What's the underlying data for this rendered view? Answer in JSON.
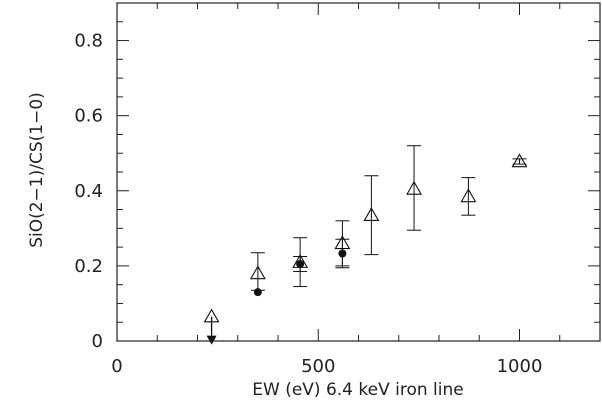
{
  "chart_data": {
    "type": "scatter",
    "title": "",
    "xlabel": "EW (eV) 6.4 keV iron line",
    "ylabel": "SiO(2−1)/CS(1−0)",
    "xlim": [
      0,
      1200
    ],
    "ylim": [
      0,
      0.9
    ],
    "grid": false,
    "legend": "none",
    "x_ticks_labeled": [
      0,
      500,
      1000
    ],
    "x_tick_labels": [
      "0",
      "500",
      "1000"
    ],
    "y_ticks_labeled": [
      0,
      0.2,
      0.4,
      0.6,
      0.8
    ],
    "y_tick_labels": [
      "0",
      "0.2",
      "0.4",
      "0.6",
      "0.8"
    ],
    "series": [
      {
        "marker": "open-triangle",
        "points": [
          {
            "x": 235,
            "y": 0.065,
            "upper_limit": true
          },
          {
            "x": 350,
            "y": 0.18,
            "err_lo": 0.045,
            "err_hi": 0.055
          },
          {
            "x": 455,
            "y": 0.21,
            "err_lo": 0.065,
            "err_hi": 0.065
          },
          {
            "x": 560,
            "y": 0.26,
            "err_lo": 0.06,
            "err_hi": 0.06
          },
          {
            "x": 632,
            "y": 0.335,
            "err_lo": 0.105,
            "err_hi": 0.105
          },
          {
            "x": 738,
            "y": 0.405,
            "err_lo": 0.11,
            "err_hi": 0.115
          },
          {
            "x": 873,
            "y": 0.385,
            "err_lo": 0.05,
            "err_hi": 0.05
          },
          {
            "x": 1000,
            "y": 0.478,
            "err_lo": 0.007,
            "err_hi": 0.007
          }
        ]
      },
      {
        "marker": "filled-circle",
        "points": [
          {
            "x": 350,
            "y": 0.13
          },
          {
            "x": 455,
            "y": 0.205,
            "err_lo": 0.02,
            "err_hi": 0.02
          },
          {
            "x": 560,
            "y": 0.233,
            "err_lo": 0.038,
            "err_hi": 0.038
          }
        ]
      }
    ],
    "colors": {
      "axis": "#222222",
      "marker": "#111111"
    }
  }
}
